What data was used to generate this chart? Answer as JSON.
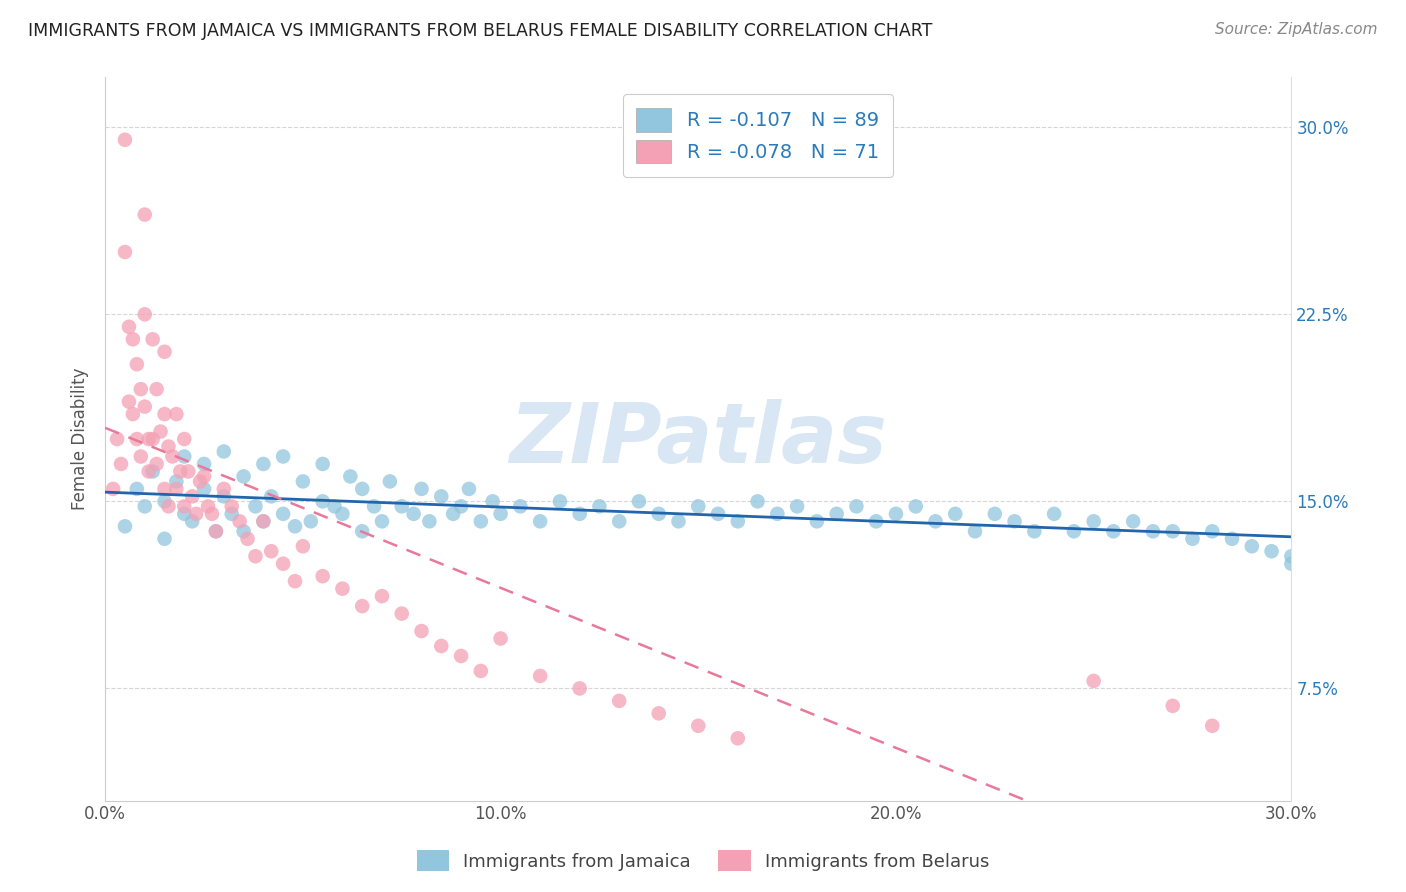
{
  "title": "IMMIGRANTS FROM JAMAICA VS IMMIGRANTS FROM BELARUS FEMALE DISABILITY CORRELATION CHART",
  "source": "Source: ZipAtlas.com",
  "ylabel": "Female Disability",
  "xlim": [
    0.0,
    0.3
  ],
  "ylim": [
    0.03,
    0.32
  ],
  "xticks": [
    0.0,
    0.05,
    0.1,
    0.15,
    0.2,
    0.25,
    0.3
  ],
  "xticklabels": [
    "0.0%",
    "",
    "10.0%",
    "",
    "20.0%",
    "",
    "30.0%"
  ],
  "yticks": [
    0.075,
    0.15,
    0.225,
    0.3
  ],
  "yticklabels": [
    "7.5%",
    "15.0%",
    "22.5%",
    "30.0%"
  ],
  "legend_text1": "R = -0.107   N = 89",
  "legend_text2": "R = -0.078   N = 71",
  "legend_label1": "Immigrants from Jamaica",
  "legend_label2": "Immigrants from Belarus",
  "color_jamaica": "#92c5de",
  "color_belarus": "#f4a0b5",
  "color_jamaica_line": "#2166ac",
  "color_belarus_line": "#e8799a",
  "watermark": "ZIPatlas",
  "jamaica_x": [
    0.005,
    0.008,
    0.01,
    0.012,
    0.015,
    0.015,
    0.018,
    0.02,
    0.02,
    0.022,
    0.025,
    0.025,
    0.028,
    0.03,
    0.03,
    0.032,
    0.035,
    0.035,
    0.038,
    0.04,
    0.04,
    0.042,
    0.045,
    0.045,
    0.048,
    0.05,
    0.052,
    0.055,
    0.055,
    0.058,
    0.06,
    0.062,
    0.065,
    0.065,
    0.068,
    0.07,
    0.072,
    0.075,
    0.078,
    0.08,
    0.082,
    0.085,
    0.088,
    0.09,
    0.092,
    0.095,
    0.098,
    0.1,
    0.105,
    0.11,
    0.115,
    0.12,
    0.125,
    0.13,
    0.135,
    0.14,
    0.145,
    0.15,
    0.155,
    0.16,
    0.165,
    0.17,
    0.175,
    0.18,
    0.185,
    0.19,
    0.195,
    0.2,
    0.205,
    0.21,
    0.215,
    0.22,
    0.225,
    0.23,
    0.235,
    0.24,
    0.245,
    0.25,
    0.255,
    0.26,
    0.265,
    0.27,
    0.275,
    0.28,
    0.285,
    0.29,
    0.295,
    0.3,
    0.3
  ],
  "jamaica_y": [
    0.14,
    0.155,
    0.148,
    0.162,
    0.135,
    0.15,
    0.158,
    0.145,
    0.168,
    0.142,
    0.155,
    0.165,
    0.138,
    0.152,
    0.17,
    0.145,
    0.138,
    0.16,
    0.148,
    0.142,
    0.165,
    0.152,
    0.145,
    0.168,
    0.14,
    0.158,
    0.142,
    0.15,
    0.165,
    0.148,
    0.145,
    0.16,
    0.138,
    0.155,
    0.148,
    0.142,
    0.158,
    0.148,
    0.145,
    0.155,
    0.142,
    0.152,
    0.145,
    0.148,
    0.155,
    0.142,
    0.15,
    0.145,
    0.148,
    0.142,
    0.15,
    0.145,
    0.148,
    0.142,
    0.15,
    0.145,
    0.142,
    0.148,
    0.145,
    0.142,
    0.15,
    0.145,
    0.148,
    0.142,
    0.145,
    0.148,
    0.142,
    0.145,
    0.148,
    0.142,
    0.145,
    0.138,
    0.145,
    0.142,
    0.138,
    0.145,
    0.138,
    0.142,
    0.138,
    0.142,
    0.138,
    0.138,
    0.135,
    0.138,
    0.135,
    0.132,
    0.13,
    0.128,
    0.125
  ],
  "belarus_x": [
    0.002,
    0.003,
    0.004,
    0.005,
    0.005,
    0.006,
    0.006,
    0.007,
    0.007,
    0.008,
    0.008,
    0.009,
    0.009,
    0.01,
    0.01,
    0.01,
    0.011,
    0.011,
    0.012,
    0.012,
    0.013,
    0.013,
    0.014,
    0.015,
    0.015,
    0.015,
    0.016,
    0.016,
    0.017,
    0.018,
    0.018,
    0.019,
    0.02,
    0.02,
    0.021,
    0.022,
    0.023,
    0.024,
    0.025,
    0.026,
    0.027,
    0.028,
    0.03,
    0.032,
    0.034,
    0.036,
    0.038,
    0.04,
    0.042,
    0.045,
    0.048,
    0.05,
    0.055,
    0.06,
    0.065,
    0.07,
    0.075,
    0.08,
    0.085,
    0.09,
    0.095,
    0.1,
    0.11,
    0.12,
    0.13,
    0.14,
    0.15,
    0.16,
    0.25,
    0.27,
    0.28
  ],
  "belarus_y": [
    0.155,
    0.175,
    0.165,
    0.295,
    0.25,
    0.22,
    0.19,
    0.215,
    0.185,
    0.205,
    0.175,
    0.195,
    0.168,
    0.265,
    0.225,
    0.188,
    0.175,
    0.162,
    0.215,
    0.175,
    0.195,
    0.165,
    0.178,
    0.21,
    0.185,
    0.155,
    0.172,
    0.148,
    0.168,
    0.185,
    0.155,
    0.162,
    0.175,
    0.148,
    0.162,
    0.152,
    0.145,
    0.158,
    0.16,
    0.148,
    0.145,
    0.138,
    0.155,
    0.148,
    0.142,
    0.135,
    0.128,
    0.142,
    0.13,
    0.125,
    0.118,
    0.132,
    0.12,
    0.115,
    0.108,
    0.112,
    0.105,
    0.098,
    0.092,
    0.088,
    0.082,
    0.095,
    0.08,
    0.075,
    0.07,
    0.065,
    0.06,
    0.055,
    0.078,
    0.068,
    0.06
  ],
  "jamaica_trend": [
    -0.02,
    0.146,
    0.127
  ],
  "belarus_trend": [
    -0.4,
    0.148,
    0.028
  ]
}
